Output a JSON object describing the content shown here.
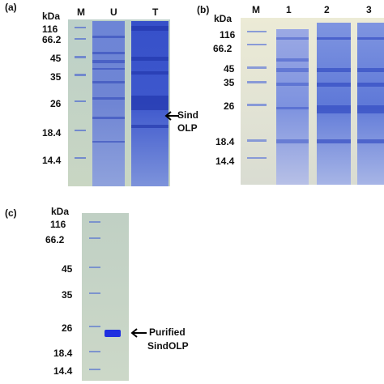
{
  "panel_a": {
    "label": "(a)",
    "units": "kDa",
    "lanes": [
      "M",
      "U",
      "T"
    ],
    "markers": [
      "116",
      "66.2",
      "45",
      "35",
      "26",
      "18.4",
      "14.4"
    ],
    "annotation_line1": "Sind",
    "annotation_line2": "OLP"
  },
  "panel_b": {
    "label": "(b)",
    "units": "kDa",
    "lanes": [
      "M",
      "1",
      "2",
      "3"
    ],
    "markers": [
      "116",
      "66.2",
      "45",
      "35",
      "26",
      "18.4",
      "14.4"
    ]
  },
  "panel_c": {
    "label": "(c)",
    "units": "kDa",
    "markers": [
      "116",
      "66.2",
      "45",
      "35",
      "26",
      "18.4",
      "14.4"
    ],
    "annotation_line1": "Purified",
    "annotation_line2": "SindOLP"
  },
  "colors": {
    "gel_a_bg": "#c9d2d8",
    "gel_b_bg": "#e9e7d5",
    "gel_c_bg": "#c7d5c8",
    "stain": "#2f48c8"
  }
}
